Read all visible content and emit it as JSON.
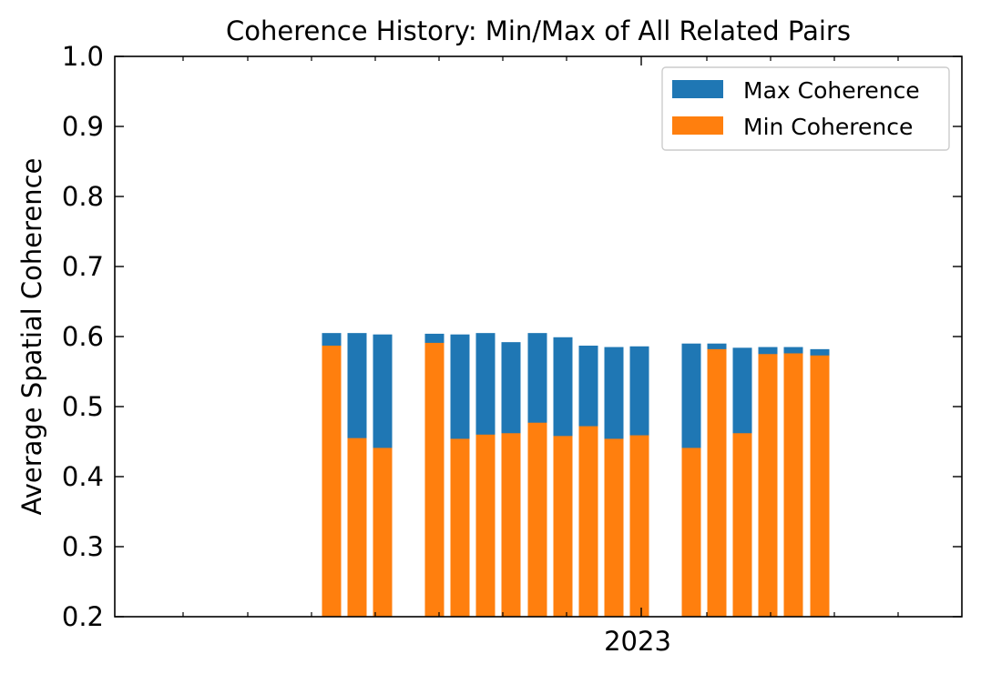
{
  "chart_data": {
    "type": "bar",
    "title": "Coherence History: Min/Max of All Related Pairs",
    "xlabel": "",
    "ylabel": "Average Spatial Coherence",
    "ylim": [
      0.2,
      1.0
    ],
    "yticks": [
      "0.2",
      "0.3",
      "0.4",
      "0.5",
      "0.6",
      "0.7",
      "0.8",
      "0.9",
      "1.0"
    ],
    "xtick_labels": [
      "2023"
    ],
    "legend_position": "upper right",
    "grid": false,
    "colors": {
      "max": "#1f77b4",
      "min": "#ff7f0e"
    },
    "series": [
      {
        "name": "Max Coherence",
        "values": [
          0.605,
          0.605,
          0.603,
          0.604,
          0.603,
          0.605,
          0.592,
          0.605,
          0.599,
          0.587,
          0.585,
          0.586,
          0.59,
          0.59,
          0.584,
          0.585,
          0.585,
          0.582
        ]
      },
      {
        "name": "Min Coherence",
        "values": [
          0.587,
          0.455,
          0.441,
          0.591,
          0.454,
          0.46,
          0.462,
          0.477,
          0.458,
          0.472,
          0.454,
          0.459,
          0.441,
          0.582,
          0.462,
          0.575,
          0.576,
          0.573
        ]
      }
    ]
  }
}
